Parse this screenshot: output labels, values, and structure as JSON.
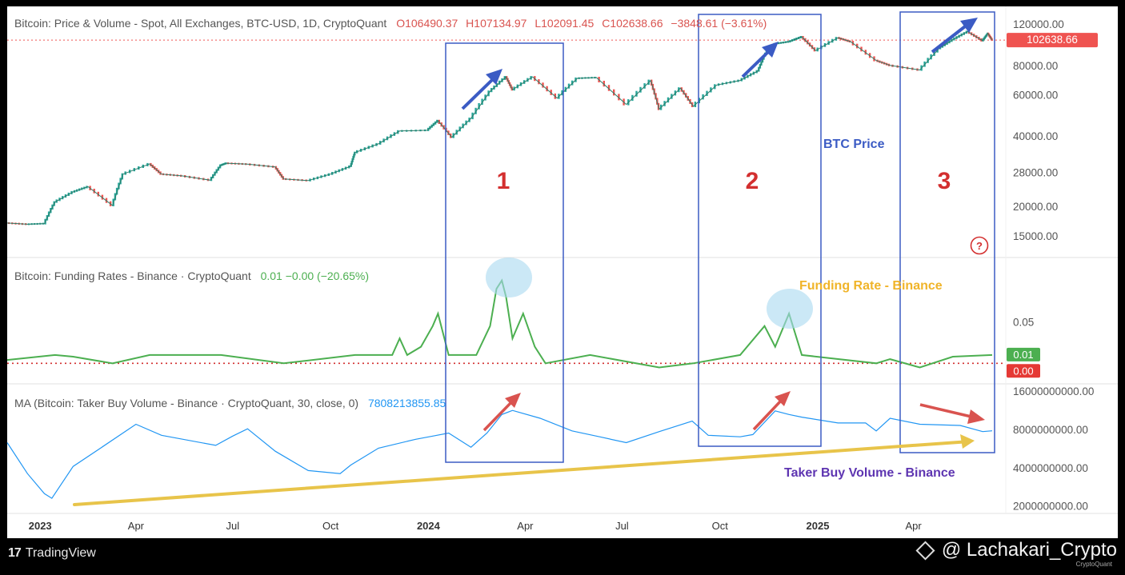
{
  "price_pane": {
    "title": "Bitcoin: Price & Volume - Spot, All Exchanges, BTC-USD, 1D, CryptoQuant",
    "ohlc": {
      "open": "O106490.37",
      "high": "H107134.97",
      "low": "L102091.45",
      "close": "C102638.66"
    },
    "change": "−3848.61 (−3.61%)",
    "last_price_label": "102638.66",
    "help_icon": "?"
  },
  "funding_pane": {
    "title": "Bitcoin: Funding Rates - Binance · CryptoQuant",
    "values": "0.01  −0.00 (−20.65%)",
    "last_label": "0.01",
    "zero_label": "0.00"
  },
  "volume_pane": {
    "title": "MA (Bitcoin: Taker Buy Volume - Binance · CryptoQuant, 30, close, 0)",
    "value": "7808213855.85"
  },
  "annotations": {
    "box1": "1",
    "box2": "2",
    "box3": "3",
    "btc_price": "BTC Price",
    "funding": "Funding Rate - Binance",
    "taker": "Taker Buy Volume - Binance"
  },
  "footer": {
    "brand_logo": "17",
    "brand": "TradingView",
    "handle": "@ Lachakari_Crypto",
    "sub": "CryptoQuant"
  },
  "colors": {
    "price_up": "#26a69a",
    "price_down": "#ef5350",
    "funding_line": "#4caf50",
    "volume_line": "#2196f3",
    "box": "#3b5bc4",
    "trend": "#e8c44a",
    "label_red": "#d32f2f",
    "label_blue": "#3b5bc4",
    "label_gold": "#f0b429",
    "label_purple": "#5e35b1"
  },
  "chart_data": [
    {
      "type": "line",
      "name": "price",
      "scale": "log",
      "ylim": [
        12500,
        130000
      ],
      "y_ticks": [
        120000,
        80000,
        60000,
        40000,
        28000,
        20000,
        15000
      ],
      "y_tick_labels": [
        "120000.00",
        "80000.00",
        "60000.00",
        "40000.00",
        "28000.00",
        "20000.00",
        "15000.00"
      ],
      "x_ticks": [
        "2023",
        "Apr",
        "Jul",
        "Oct",
        "2024",
        "Apr",
        "Jul",
        "Oct",
        "2025",
        "Apr"
      ],
      "x_tick_dates": [
        "2023-01-01",
        "2023-04-01",
        "2023-07-01",
        "2023-10-01",
        "2024-01-01",
        "2024-04-01",
        "2024-07-01",
        "2024-10-01",
        "2025-01-01",
        "2025-04-01"
      ],
      "x_range": [
        "2022-12-01",
        "2025-06-20"
      ],
      "points": [
        [
          "2022-12-01",
          17000
        ],
        [
          "2022-12-20",
          16800
        ],
        [
          "2023-01-05",
          16900
        ],
        [
          "2023-01-15",
          20900
        ],
        [
          "2023-02-01",
          23100
        ],
        [
          "2023-02-15",
          24300
        ],
        [
          "2023-03-10",
          20200
        ],
        [
          "2023-03-20",
          27500
        ],
        [
          "2023-04-14",
          30400
        ],
        [
          "2023-04-25",
          27500
        ],
        [
          "2023-05-15",
          27000
        ],
        [
          "2023-06-10",
          25900
        ],
        [
          "2023-06-20",
          30000
        ],
        [
          "2023-06-25",
          30600
        ],
        [
          "2023-07-15",
          30300
        ],
        [
          "2023-08-10",
          29500
        ],
        [
          "2023-08-18",
          26200
        ],
        [
          "2023-09-10",
          25800
        ],
        [
          "2023-10-01",
          27500
        ],
        [
          "2023-10-20",
          29700
        ],
        [
          "2023-10-24",
          34000
        ],
        [
          "2023-11-15",
          37000
        ],
        [
          "2023-12-05",
          42000
        ],
        [
          "2023-12-31",
          42300
        ],
        [
          "2024-01-10",
          46500
        ],
        [
          "2024-01-23",
          39500
        ],
        [
          "2024-02-10",
          47500
        ],
        [
          "2024-02-28",
          62000
        ],
        [
          "2024-03-14",
          71500
        ],
        [
          "2024-03-20",
          63000
        ],
        [
          "2024-04-08",
          71500
        ],
        [
          "2024-05-01",
          58000
        ],
        [
          "2024-05-20",
          70500
        ],
        [
          "2024-06-07",
          71000
        ],
        [
          "2024-07-05",
          54500
        ],
        [
          "2024-07-28",
          69000
        ],
        [
          "2024-08-05",
          52000
        ],
        [
          "2024-08-25",
          64000
        ],
        [
          "2024-09-06",
          53500
        ],
        [
          "2024-09-28",
          66000
        ],
        [
          "2024-10-20",
          69000
        ],
        [
          "2024-11-06",
          75800
        ],
        [
          "2024-11-13",
          90000
        ],
        [
          "2024-11-22",
          99000
        ],
        [
          "2024-12-05",
          101000
        ],
        [
          "2024-12-17",
          106000
        ],
        [
          "2024-12-30",
          92500
        ],
        [
          "2025-01-20",
          105000
        ],
        [
          "2025-02-01",
          101000
        ],
        [
          "2025-02-25",
          84000
        ],
        [
          "2025-03-10",
          80000
        ],
        [
          "2025-04-07",
          76500
        ],
        [
          "2025-04-25",
          94500
        ],
        [
          "2025-05-08",
          103000
        ],
        [
          "2025-05-22",
          111500
        ],
        [
          "2025-06-05",
          102000
        ],
        [
          "2025-06-10",
          109500
        ],
        [
          "2025-06-14",
          102638
        ]
      ],
      "last_value": 102638.66
    },
    {
      "type": "line",
      "name": "funding_rate",
      "ylim": [
        -0.02,
        0.12
      ],
      "y_ticks": [
        0.05
      ],
      "y_tick_labels": [
        "0.05"
      ],
      "zero_line": 0,
      "points": [
        [
          "2022-12-01",
          0.004
        ],
        [
          "2023-01-15",
          0.01
        ],
        [
          "2023-02-01",
          0.008
        ],
        [
          "2023-03-10",
          0.0
        ],
        [
          "2023-04-14",
          0.01
        ],
        [
          "2023-06-20",
          0.01
        ],
        [
          "2023-08-18",
          0.0
        ],
        [
          "2023-10-24",
          0.01
        ],
        [
          "2023-11-28",
          0.01
        ],
        [
          "2023-12-05",
          0.03
        ],
        [
          "2023-12-12",
          0.01
        ],
        [
          "2023-12-25",
          0.02
        ],
        [
          "2024-01-05",
          0.045
        ],
        [
          "2024-01-10",
          0.06
        ],
        [
          "2024-01-20",
          0.01
        ],
        [
          "2024-02-15",
          0.01
        ],
        [
          "2024-02-28",
          0.045
        ],
        [
          "2024-03-05",
          0.09
        ],
        [
          "2024-03-10",
          0.1
        ],
        [
          "2024-03-14",
          0.08
        ],
        [
          "2024-03-20",
          0.03
        ],
        [
          "2024-03-30",
          0.06
        ],
        [
          "2024-04-10",
          0.02
        ],
        [
          "2024-04-20",
          0.0
        ],
        [
          "2024-06-01",
          0.01
        ],
        [
          "2024-08-05",
          -0.005
        ],
        [
          "2024-09-06",
          0.0
        ],
        [
          "2024-10-20",
          0.01
        ],
        [
          "2024-11-12",
          0.045
        ],
        [
          "2024-11-22",
          0.02
        ],
        [
          "2024-12-05",
          0.06
        ],
        [
          "2024-12-17",
          0.01
        ],
        [
          "2025-02-25",
          0.0
        ],
        [
          "2025-03-10",
          0.005
        ],
        [
          "2025-04-07",
          -0.005
        ],
        [
          "2025-05-08",
          0.008
        ],
        [
          "2025-06-14",
          0.01
        ]
      ],
      "last_value": 0.01
    },
    {
      "type": "line",
      "name": "taker_buy_volume_ma30",
      "scale": "log",
      "ylim": [
        1800000000,
        17000000000
      ],
      "y_ticks": [
        16000000000,
        8000000000,
        4000000000,
        2000000000
      ],
      "y_tick_labels": [
        "16000000000.00",
        "8000000000.00",
        "4000000000.00",
        "2000000000.00"
      ],
      "points": [
        [
          "2022-12-01",
          6300000000
        ],
        [
          "2022-12-20",
          3600000000
        ],
        [
          "2023-01-05",
          2500000000
        ],
        [
          "2023-01-12",
          2300000000
        ],
        [
          "2023-02-01",
          4100000000
        ],
        [
          "2023-02-28",
          5800000000
        ],
        [
          "2023-04-01",
          8800000000
        ],
        [
          "2023-04-25",
          7200000000
        ],
        [
          "2023-06-15",
          6000000000
        ],
        [
          "2023-07-01",
          7100000000
        ],
        [
          "2023-07-15",
          8100000000
        ],
        [
          "2023-08-10",
          5400000000
        ],
        [
          "2023-09-10",
          3800000000
        ],
        [
          "2023-10-10",
          3600000000
        ],
        [
          "2023-10-20",
          4200000000
        ],
        [
          "2023-11-15",
          5700000000
        ],
        [
          "2023-12-20",
          6700000000
        ],
        [
          "2024-01-05",
          7100000000
        ],
        [
          "2024-01-20",
          7500000000
        ],
        [
          "2024-02-10",
          5800000000
        ],
        [
          "2024-02-25",
          7500000000
        ],
        [
          "2024-03-10",
          10500000000
        ],
        [
          "2024-03-20",
          11300000000
        ],
        [
          "2024-04-15",
          9800000000
        ],
        [
          "2024-05-15",
          7800000000
        ],
        [
          "2024-06-10",
          7000000000
        ],
        [
          "2024-07-05",
          6300000000
        ],
        [
          "2024-08-05",
          7700000000
        ],
        [
          "2024-09-05",
          9300000000
        ],
        [
          "2024-09-20",
          7200000000
        ],
        [
          "2024-10-20",
          7000000000
        ],
        [
          "2024-11-01",
          7300000000
        ],
        [
          "2024-11-22",
          11200000000
        ],
        [
          "2024-12-05",
          10500000000
        ],
        [
          "2024-12-17",
          10000000000
        ],
        [
          "2025-01-20",
          9000000000
        ],
        [
          "2025-02-15",
          9000000000
        ],
        [
          "2025-02-25",
          7800000000
        ],
        [
          "2025-03-10",
          9800000000
        ],
        [
          "2025-04-07",
          8800000000
        ],
        [
          "2025-05-15",
          8600000000
        ],
        [
          "2025-06-05",
          7700000000
        ],
        [
          "2025-06-14",
          7808213855
        ]
      ],
      "last_value": 7808213855.85
    }
  ]
}
